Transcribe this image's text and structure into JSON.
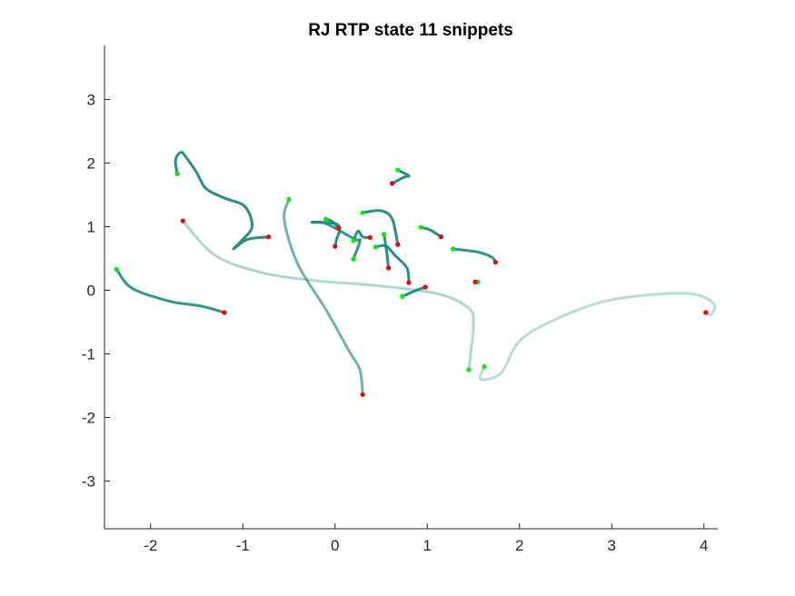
{
  "chart_data": {
    "type": "line",
    "title": "RJ  RTP state 11 snippets",
    "xlabel": "",
    "ylabel": "",
    "xlim": [
      -2.5,
      4.15
    ],
    "ylim": [
      -3.75,
      3.85
    ],
    "xticks": [
      -2,
      -1,
      0,
      1,
      2,
      3,
      4
    ],
    "yticks": [
      -3,
      -2,
      -1,
      0,
      1,
      2,
      3
    ],
    "xtick_labels": [
      "-2",
      "-1",
      "0",
      "1",
      "2",
      "3",
      "4"
    ],
    "ytick_labels": [
      "-3",
      "-2",
      "-1",
      "0",
      "1",
      "2",
      "3"
    ],
    "grid": false,
    "colors": {
      "line_dark": "#1b8a80",
      "line_mid": "#45a89f",
      "line_light": "#b9ddd9",
      "start_marker": "#00ee00",
      "end_marker": "#ee0000"
    },
    "series": [
      {
        "opacity": 0.95,
        "points": [
          [
            -1.71,
            1.83
          ],
          [
            -1.73,
            2.05
          ],
          [
            -1.67,
            2.17
          ],
          [
            -1.62,
            2.1
          ],
          [
            -1.5,
            1.85
          ],
          [
            -1.4,
            1.6
          ],
          [
            -1.2,
            1.45
          ],
          [
            -0.98,
            1.32
          ],
          [
            -0.9,
            1.0
          ],
          [
            -1.02,
            0.77
          ],
          [
            -1.1,
            0.65
          ],
          [
            -0.95,
            0.8
          ],
          [
            -0.72,
            0.84
          ]
        ]
      },
      {
        "opacity": 0.35,
        "points": [
          [
            -1.65,
            1.09
          ],
          [
            -1.3,
            0.55
          ],
          [
            -0.8,
            0.28
          ],
          [
            -0.2,
            0.15
          ],
          [
            0.4,
            0.08
          ],
          [
            1.1,
            -0.05
          ],
          [
            1.45,
            -0.28
          ],
          [
            1.5,
            -0.55
          ],
          [
            1.47,
            -1.0
          ],
          [
            1.45,
            -1.25
          ]
        ]
      },
      {
        "opacity": 0.3,
        "points": [
          [
            1.62,
            -1.2
          ],
          [
            1.58,
            -1.4
          ],
          [
            1.8,
            -1.3
          ],
          [
            2.0,
            -0.8
          ],
          [
            2.4,
            -0.45
          ],
          [
            3.0,
            -0.15
          ],
          [
            3.8,
            -0.05
          ],
          [
            4.1,
            -0.2
          ],
          [
            4.08,
            -0.38
          ],
          [
            4.02,
            -0.35
          ]
        ]
      },
      {
        "opacity": 0.9,
        "points": [
          [
            -2.37,
            0.33
          ],
          [
            -2.2,
            0.03
          ],
          [
            -1.8,
            -0.17
          ],
          [
            -1.45,
            -0.25
          ],
          [
            -1.2,
            -0.35
          ]
        ]
      },
      {
        "opacity": 0.65,
        "points": [
          [
            -0.5,
            1.43
          ],
          [
            -0.55,
            1.1
          ],
          [
            -0.4,
            0.4
          ],
          [
            -0.1,
            -0.3
          ],
          [
            0.15,
            -0.95
          ],
          [
            0.27,
            -1.25
          ],
          [
            0.3,
            -1.64
          ]
        ]
      },
      {
        "opacity": 0.95,
        "points": [
          [
            -0.25,
            1.07
          ],
          [
            0.0,
            1.05
          ],
          [
            0.05,
            0.95
          ],
          [
            0.02,
            0.82
          ],
          [
            0.0,
            0.69
          ]
        ]
      },
      {
        "opacity": 0.95,
        "points": [
          [
            -0.1,
            1.12
          ],
          [
            -0.03,
            1.08
          ],
          [
            0.04,
            0.98
          ]
        ]
      },
      {
        "opacity": 0.95,
        "points": [
          [
            0.3,
            1.22
          ],
          [
            0.5,
            1.25
          ],
          [
            0.62,
            1.12
          ],
          [
            0.68,
            0.72
          ]
        ]
      },
      {
        "opacity": 0.95,
        "points": [
          [
            0.2,
            0.78
          ],
          [
            0.25,
            0.93
          ],
          [
            0.3,
            0.84
          ],
          [
            0.38,
            0.83
          ]
        ]
      },
      {
        "opacity": 0.9,
        "points": [
          [
            0.2,
            0.49
          ],
          [
            0.27,
            0.78
          ],
          [
            0.22,
            0.8
          ],
          [
            -0.1,
            1.05
          ],
          [
            -0.25,
            1.07
          ]
        ]
      },
      {
        "opacity": 0.95,
        "points": [
          [
            0.44,
            0.68
          ],
          [
            0.55,
            0.7
          ],
          [
            0.65,
            0.55
          ],
          [
            0.78,
            0.35
          ],
          [
            0.8,
            0.12
          ]
        ]
      },
      {
        "opacity": 0.95,
        "points": [
          [
            0.53,
            0.88
          ],
          [
            0.56,
            0.6
          ],
          [
            0.58,
            0.35
          ]
        ]
      },
      {
        "opacity": 0.95,
        "points": [
          [
            0.68,
            1.89
          ],
          [
            0.8,
            1.8
          ],
          [
            0.75,
            1.78
          ],
          [
            0.62,
            1.68
          ]
        ]
      },
      {
        "opacity": 0.95,
        "points": [
          [
            0.73,
            -0.1
          ],
          [
            0.85,
            -0.02
          ],
          [
            0.98,
            0.05
          ]
        ]
      },
      {
        "opacity": 0.95,
        "points": [
          [
            0.93,
            0.99
          ],
          [
            1.03,
            0.95
          ],
          [
            1.15,
            0.84
          ]
        ]
      },
      {
        "opacity": 0.9,
        "points": [
          [
            1.28,
            0.65
          ],
          [
            1.55,
            0.6
          ],
          [
            1.7,
            0.52
          ],
          [
            1.74,
            0.44
          ]
        ]
      },
      {
        "opacity": 0.95,
        "points": [
          [
            1.52,
            0.13
          ],
          [
            1.55,
            0.13
          ]
        ]
      }
    ],
    "start_points": [
      [
        -1.71,
        1.83
      ],
      [
        -2.37,
        0.33
      ],
      [
        -0.5,
        1.43
      ],
      [
        -0.1,
        1.12
      ],
      [
        0.3,
        1.22
      ],
      [
        0.2,
        0.78
      ],
      [
        0.2,
        0.49
      ],
      [
        0.44,
        0.68
      ],
      [
        0.53,
        0.88
      ],
      [
        0.68,
        1.89
      ],
      [
        0.73,
        -0.1
      ],
      [
        0.93,
        0.99
      ],
      [
        1.28,
        0.65
      ],
      [
        1.55,
        0.13
      ],
      [
        1.45,
        -1.25
      ],
      [
        1.62,
        -1.2
      ]
    ],
    "end_points": [
      [
        -1.65,
        1.09
      ],
      [
        -0.72,
        0.84
      ],
      [
        -1.2,
        -0.35
      ],
      [
        0.3,
        -1.64
      ],
      [
        0.0,
        0.69
      ],
      [
        0.04,
        0.98
      ],
      [
        0.38,
        0.83
      ],
      [
        0.68,
        0.72
      ],
      [
        0.58,
        0.35
      ],
      [
        0.8,
        0.12
      ],
      [
        0.62,
        1.68
      ],
      [
        0.98,
        0.05
      ],
      [
        1.15,
        0.84
      ],
      [
        1.74,
        0.44
      ],
      [
        1.52,
        0.13
      ],
      [
        4.02,
        -0.35
      ]
    ]
  }
}
